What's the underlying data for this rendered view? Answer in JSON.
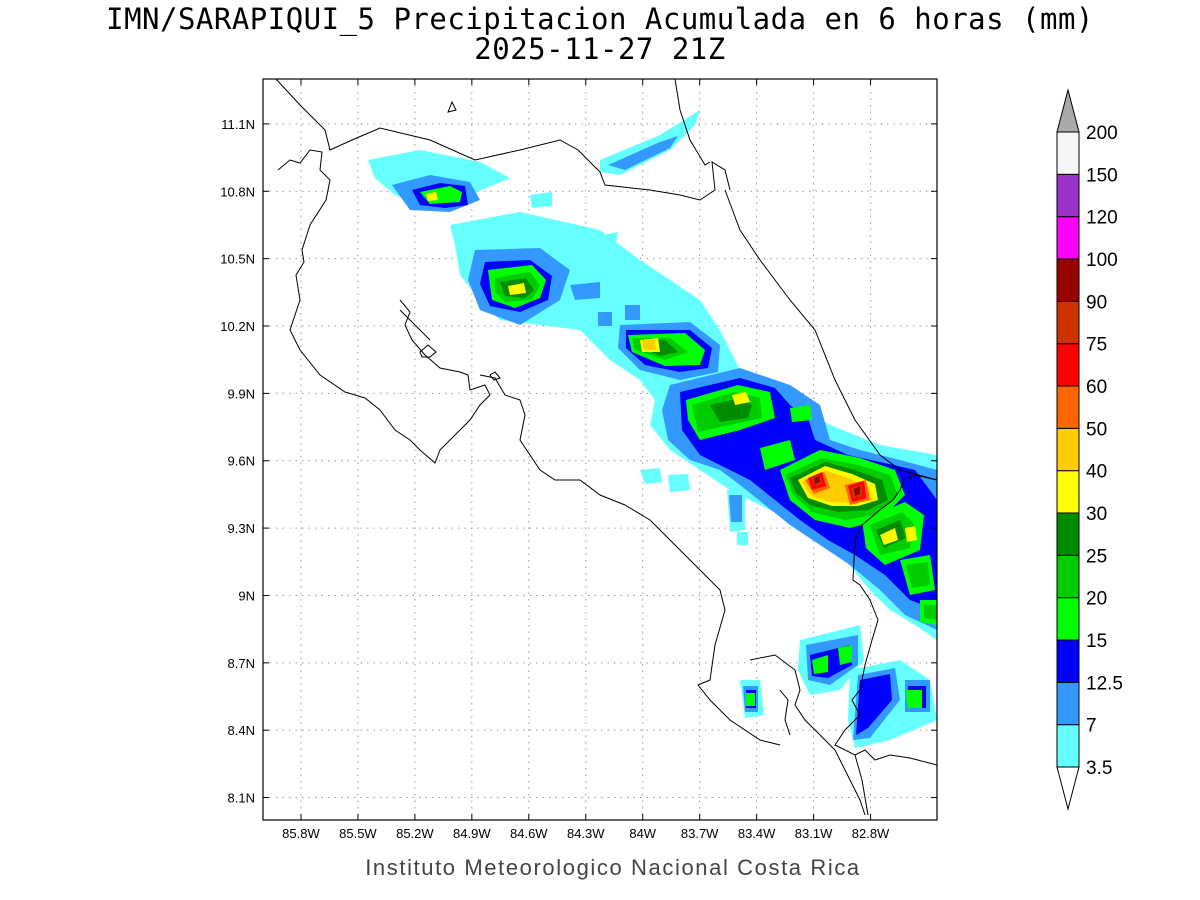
{
  "title": {
    "line1": "IMN/SARAPIQUI_5 Precipitacion Acumulada en 6 horas (mm)",
    "line2": "2025-11-27 21Z"
  },
  "footer": "Instituto Meteorologico Nacional Costa Rica",
  "map": {
    "lon_range": [
      -86.0,
      -82.45
    ],
    "lat_range": [
      8.0,
      11.3
    ],
    "x_ticks": [
      {
        "value": -85.8,
        "label": "85.8W"
      },
      {
        "value": -85.5,
        "label": "85.5W"
      },
      {
        "value": -85.2,
        "label": "85.2W"
      },
      {
        "value": -84.9,
        "label": "84.9W"
      },
      {
        "value": -84.6,
        "label": "84.6W"
      },
      {
        "value": -84.3,
        "label": "84.3W"
      },
      {
        "value": -84.0,
        "label": "84W"
      },
      {
        "value": -83.7,
        "label": "83.7W"
      },
      {
        "value": -83.4,
        "label": "83.4W"
      },
      {
        "value": -83.1,
        "label": "83.1W"
      },
      {
        "value": -82.8,
        "label": "82.8W"
      }
    ],
    "y_ticks": [
      {
        "value": 11.1,
        "label": "11.1N"
      },
      {
        "value": 10.8,
        "label": "10.8N"
      },
      {
        "value": 10.5,
        "label": "10.5N"
      },
      {
        "value": 10.2,
        "label": "10.2N"
      },
      {
        "value": 9.9,
        "label": "9.9N"
      },
      {
        "value": 9.6,
        "label": "9.6N"
      },
      {
        "value": 9.3,
        "label": "9.3N"
      },
      {
        "value": 9.0,
        "label": "9N"
      },
      {
        "value": 8.7,
        "label": "8.7N"
      },
      {
        "value": 8.4,
        "label": "8.4N"
      },
      {
        "value": 8.1,
        "label": "8.1N"
      }
    ],
    "grid": "dotted"
  },
  "colorbar": {
    "levels": [
      {
        "label": "3.5",
        "color": "#66ffff"
      },
      {
        "label": "7",
        "color": "#3399ff"
      },
      {
        "label": "12.5",
        "color": "#0000ff"
      },
      {
        "label": "15",
        "color": "#00ff00"
      },
      {
        "label": "20",
        "color": "#00cc00"
      },
      {
        "label": "25",
        "color": "#008c00"
      },
      {
        "label": "30",
        "color": "#ffff00"
      },
      {
        "label": "40",
        "color": "#ffcc00"
      },
      {
        "label": "50",
        "color": "#ff6600"
      },
      {
        "label": "60",
        "color": "#ff0000"
      },
      {
        "label": "75",
        "color": "#cc3300"
      },
      {
        "label": "90",
        "color": "#990000"
      },
      {
        "label": "100",
        "color": "#ff00ff"
      },
      {
        "label": "120",
        "color": "#9933cc"
      },
      {
        "label": "150",
        "color": "#f5f5f5"
      },
      {
        "label": "200",
        "color": "#aaaaaa"
      }
    ]
  }
}
